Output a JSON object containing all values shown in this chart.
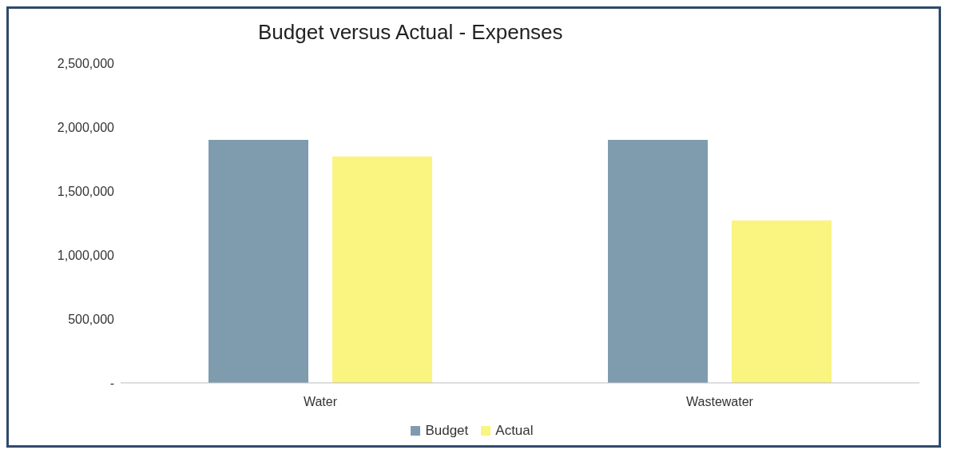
{
  "chart_data": {
    "type": "bar",
    "title": "Budget versus Actual - Expenses",
    "categories": [
      "Water",
      "Wastewater"
    ],
    "series": [
      {
        "name": "Budget",
        "color": "#7f9caf",
        "values": [
          1900000,
          1900000
        ]
      },
      {
        "name": "Actual",
        "color": "#faf480",
        "values": [
          1770000,
          1270000
        ]
      }
    ],
    "ylim": [
      0,
      2500000
    ],
    "yticks": [
      {
        "value": 0,
        "label": "-"
      },
      {
        "value": 500000,
        "label": "500,000"
      },
      {
        "value": 1000000,
        "label": "1,000,000"
      },
      {
        "value": 1500000,
        "label": "1,500,000"
      },
      {
        "value": 2000000,
        "label": "2,000,000"
      },
      {
        "value": 2500000,
        "label": "2,500,000"
      }
    ],
    "legend": "bottom"
  }
}
